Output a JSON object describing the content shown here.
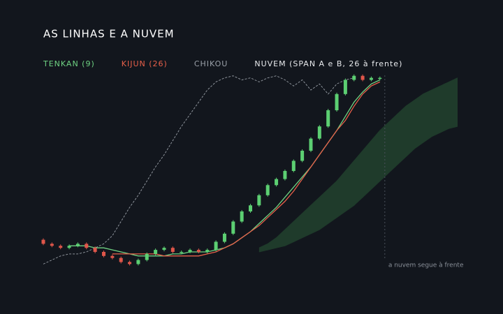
{
  "chart_data": {
    "type": "candlestick",
    "title": "AS LINHAS E A NUVEM",
    "annotation": "a nuvem segue à frente",
    "xlim": [
      0,
      48
    ],
    "ylim": [
      0,
      100
    ],
    "up_color": "#5ccf72",
    "down_color": "#e0564a",
    "x": [
      0,
      1,
      2,
      3,
      4,
      5,
      6,
      7,
      8,
      9,
      10,
      11,
      12,
      13,
      14,
      15,
      16,
      17,
      18,
      19,
      20,
      21,
      22,
      23,
      24,
      25,
      26,
      27,
      28,
      29,
      30,
      31,
      32,
      33,
      34,
      35,
      36,
      37,
      38,
      39
    ],
    "open": [
      16,
      14,
      13,
      12,
      13,
      14,
      12,
      10,
      8,
      7,
      5,
      4,
      6,
      9,
      11,
      12,
      10,
      10,
      11,
      10,
      11,
      15,
      19,
      25,
      30,
      33,
      38,
      43,
      46,
      50,
      55,
      60,
      66,
      72,
      80,
      88,
      95,
      97,
      95,
      96
    ],
    "close": [
      14,
      13,
      12,
      13,
      14,
      12,
      10,
      8,
      7,
      5,
      4,
      6,
      9,
      11,
      12,
      10,
      10,
      11,
      10,
      11,
      15,
      19,
      25,
      30,
      33,
      38,
      43,
      46,
      50,
      55,
      60,
      66,
      72,
      80,
      88,
      95,
      97,
      95,
      96,
      96
    ],
    "series": [
      {
        "name": "TENKAN (9)",
        "color": "#6fd383",
        "values": [
          null,
          null,
          null,
          13,
          13,
          13,
          12,
          12,
          11,
          10,
          9,
          8,
          8,
          8,
          8,
          9,
          9,
          10,
          10,
          10,
          11,
          12,
          14,
          17,
          20,
          24,
          28,
          32,
          37,
          42,
          47,
          52,
          58,
          64,
          70,
          77,
          84,
          89,
          93,
          95
        ]
      },
      {
        "name": "KIJUN (26)",
        "color": "#e8604a",
        "values": [
          null,
          null,
          null,
          null,
          null,
          null,
          null,
          null,
          9,
          9,
          9,
          9,
          9,
          9,
          8,
          8,
          8,
          8,
          8,
          9,
          10,
          12,
          14,
          17,
          20,
          23,
          27,
          31,
          35,
          40,
          46,
          52,
          58,
          64,
          70,
          75,
          82,
          88,
          92,
          94
        ]
      },
      {
        "name": "CHIKOU",
        "color": "#9aa0a8",
        "dashed": true,
        "values": [
          4,
          6,
          8,
          9,
          9,
          10,
          12,
          14,
          18,
          25,
          32,
          38,
          45,
          52,
          58,
          65,
          72,
          78,
          84,
          90,
          94,
          96,
          97,
          95,
          96,
          94,
          96,
          97,
          95,
          92,
          95,
          90,
          93,
          88,
          93,
          95,
          96,
          null,
          null,
          null
        ]
      }
    ],
    "cloud": {
      "name": "NUVEM (SPAN A e B, 26 à frente)",
      "color": "#1f3b2b",
      "x": [
        25,
        26,
        27,
        28,
        29,
        30,
        31,
        32,
        33,
        34,
        35,
        36,
        37,
        38,
        39,
        40,
        41,
        42,
        43,
        44,
        45,
        46,
        47,
        48
      ],
      "span_a": [
        12,
        14,
        17,
        21,
        25,
        29,
        33,
        37,
        41,
        45,
        50,
        55,
        60,
        65,
        70,
        74,
        78,
        82,
        85,
        88,
        90,
        92,
        94,
        96
      ],
      "span_b": [
        10,
        11,
        12,
        13,
        15,
        17,
        19,
        21,
        24,
        27,
        30,
        33,
        37,
        41,
        45,
        49,
        53,
        57,
        61,
        64,
        67,
        69,
        71,
        72
      ]
    }
  }
}
